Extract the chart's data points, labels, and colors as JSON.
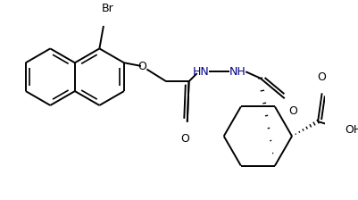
{
  "bg": "#ffffff",
  "lc": "#000000",
  "hn_color": "#00008B",
  "lw": 1.4,
  "figsize": [
    4.01,
    2.24
  ],
  "dpi": 100,
  "xlim": [
    0,
    401
  ],
  "ylim": [
    0,
    224
  ]
}
